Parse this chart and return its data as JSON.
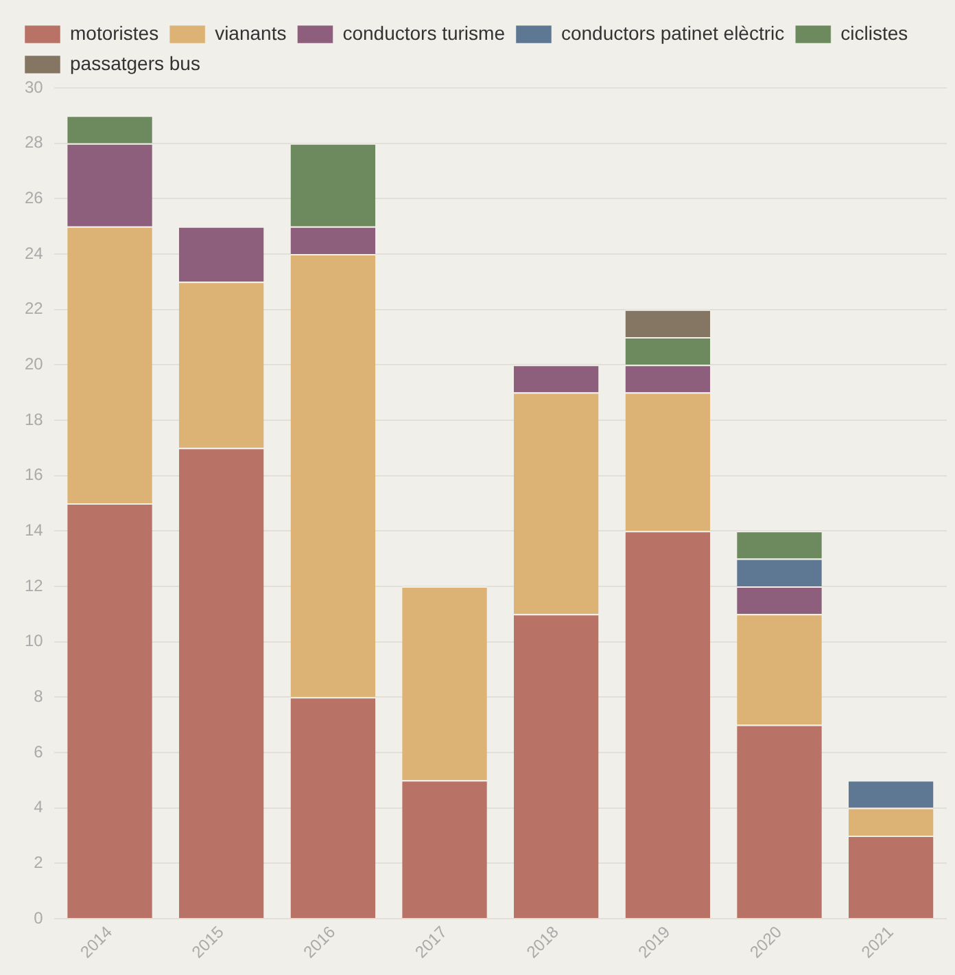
{
  "chart_data": {
    "type": "bar",
    "stacked": true,
    "categories": [
      "2014",
      "2015",
      "2016",
      "2017",
      "2018",
      "2019",
      "2020",
      "2021"
    ],
    "series": [
      {
        "name": "motoristes",
        "color": "#b87366",
        "values": [
          15,
          17,
          8,
          5,
          11,
          14,
          7,
          3
        ]
      },
      {
        "name": "vianants",
        "color": "#dcb374",
        "values": [
          10,
          6,
          16,
          7,
          8,
          5,
          4,
          1
        ]
      },
      {
        "name": "conductors turisme",
        "color": "#8e5f7c",
        "values": [
          3,
          2,
          1,
          null,
          1,
          1,
          1,
          null
        ]
      },
      {
        "name": "conductors patinet elèctric",
        "color": "#5e7792",
        "values": [
          null,
          null,
          null,
          null,
          null,
          null,
          1,
          1
        ]
      },
      {
        "name": "ciclistes",
        "color": "#6d8a5e",
        "values": [
          1,
          null,
          3,
          null,
          null,
          1,
          1,
          null
        ]
      },
      {
        "name": "passatgers bus",
        "color": "#857563",
        "values": [
          null,
          null,
          null,
          null,
          null,
          1,
          null,
          null
        ]
      }
    ],
    "ylim": [
      0,
      30
    ],
    "yticks": [
      0,
      2,
      4,
      6,
      8,
      10,
      12,
      14,
      16,
      18,
      20,
      22,
      24,
      26,
      28,
      30
    ],
    "grid": "y",
    "legend": "top left"
  }
}
